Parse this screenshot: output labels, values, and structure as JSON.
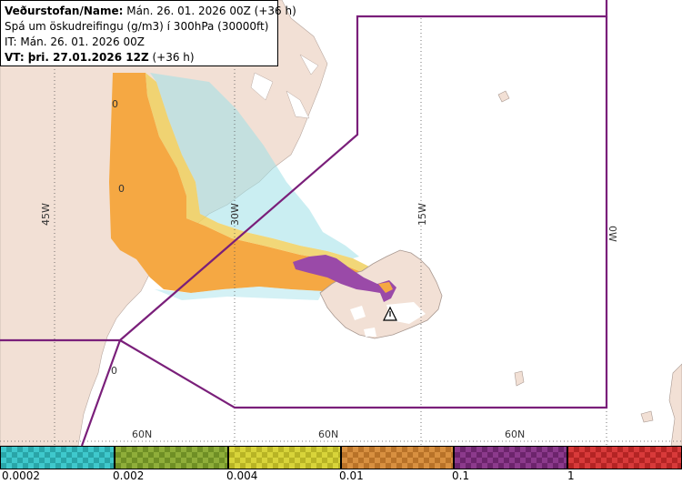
{
  "header": {
    "line1_bold": "Veðurstofan/Name:",
    "line1_rest": " Mán. 26. 01. 2026 00Z (+36 h)",
    "line2": "Spá um öskudreifingu (g/m3) í 300hPa (30000ft)",
    "line3": "IT: Mán. 26. 01. 2026 00Z",
    "line4_bold": "VT: þri. 27.01.2026 12Z",
    "line4_rest": " (+36 h)"
  },
  "grid": {
    "longitudes": [
      "45W",
      "30W",
      "15W",
      "0W"
    ],
    "latitudes": [
      "60N",
      "60N",
      "60N"
    ],
    "zero_labels": [
      "0",
      "0",
      "0"
    ]
  },
  "legend": {
    "ticks": [
      "0.0002",
      "0.002",
      "0.004",
      "0.01",
      "0.1",
      "1"
    ],
    "bins": [
      {
        "color": "#3fc8cc",
        "dark": "#29a5a8"
      },
      {
        "color": "#8fae3a",
        "dark": "#6f8f25"
      },
      {
        "color": "#d8d43a",
        "dark": "#b8b425"
      },
      {
        "color": "#d89040",
        "dark": "#b87228"
      },
      {
        "color": "#8c3a8c",
        "dark": "#6c246c"
      },
      {
        "color": "#d83a3a",
        "dark": "#b42424"
      }
    ]
  },
  "colors": {
    "land": "#f2e0d5",
    "sea": "#ffffff",
    "fir_boundary": "#7a1f7a",
    "ash_low": "#f5a843",
    "ash_mid": "#f0d060",
    "ash_high": "#9a4aa8",
    "ash_trace": "#9fe0e8"
  },
  "markers": {
    "volcano_icon": "triangle-warning-icon"
  }
}
